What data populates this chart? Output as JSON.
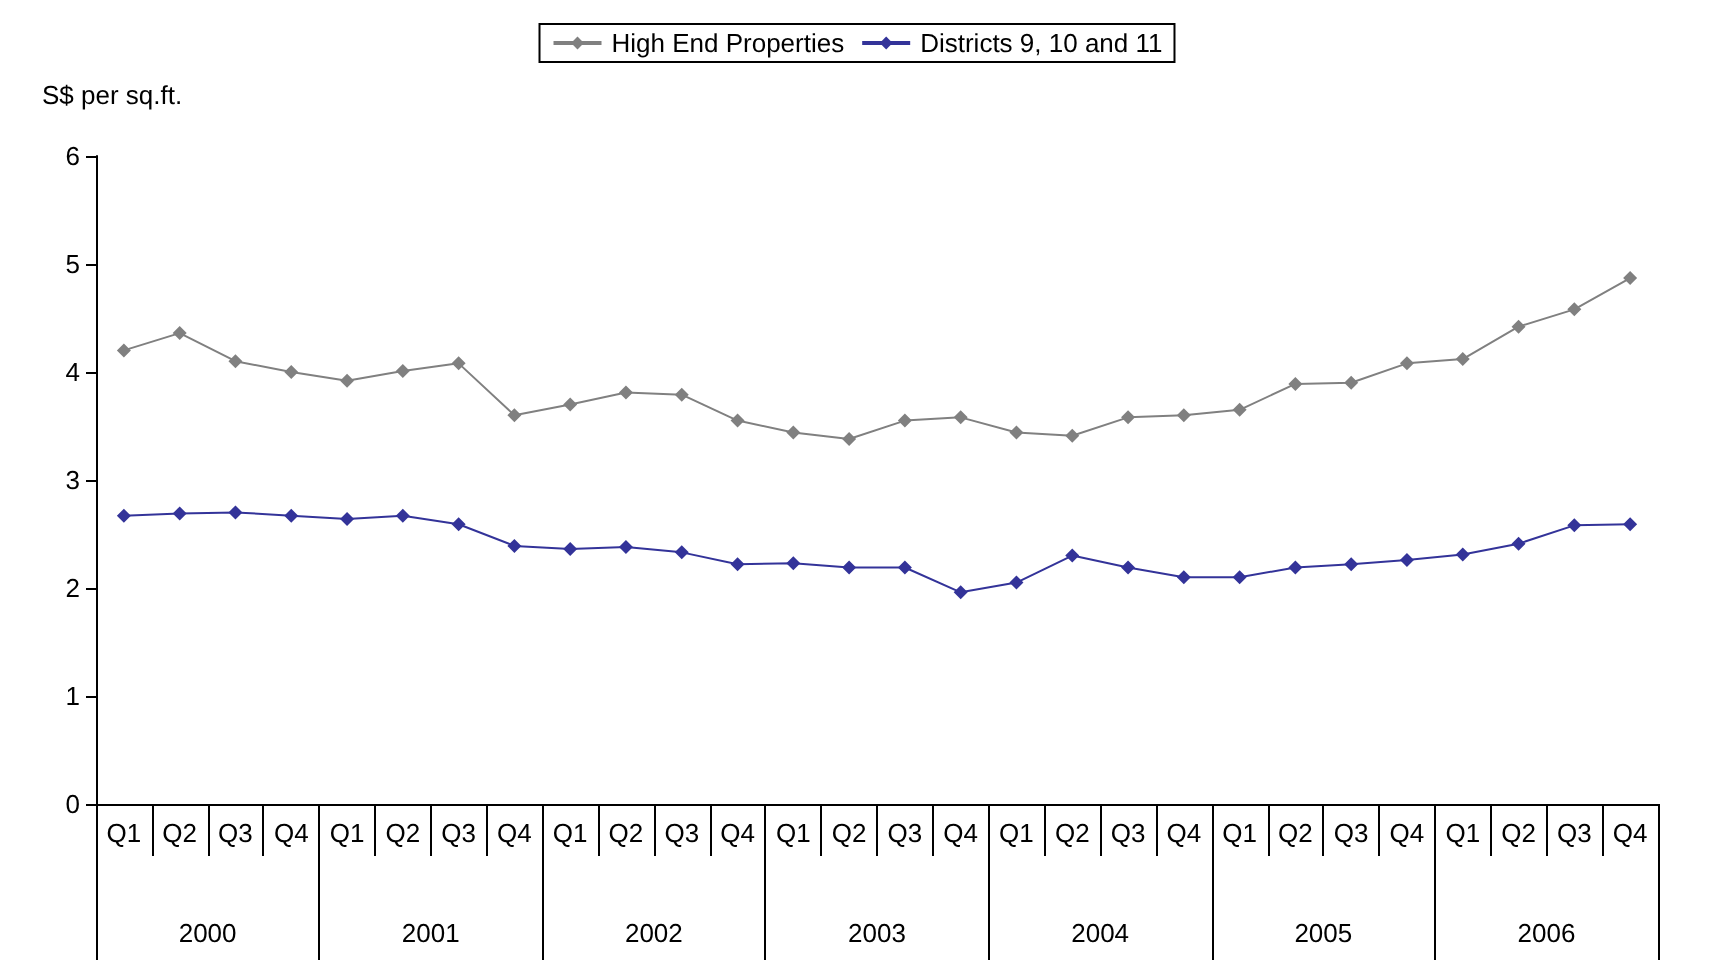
{
  "chart_data": {
    "type": "line",
    "ylabel": "S$ per sq.ft.",
    "categories": [
      "Q1",
      "Q2",
      "Q3",
      "Q4",
      "Q1",
      "Q2",
      "Q3",
      "Q4",
      "Q1",
      "Q2",
      "Q3",
      "Q4",
      "Q1",
      "Q2",
      "Q3",
      "Q4",
      "Q1",
      "Q2",
      "Q3",
      "Q4",
      "Q1",
      "Q2",
      "Q3",
      "Q4",
      "Q1",
      "Q2",
      "Q3",
      "Q4"
    ],
    "annotations": [
      "2000",
      "2001",
      "2002",
      "2003",
      "2004",
      "2005",
      "2006"
    ],
    "series": [
      {
        "name": "High End Properties",
        "color": "#808080",
        "values": [
          4.2,
          4.36,
          4.1,
          4.0,
          3.92,
          4.01,
          4.08,
          3.6,
          3.7,
          3.81,
          3.79,
          3.55,
          3.44,
          3.38,
          3.55,
          3.58,
          3.44,
          3.41,
          3.58,
          3.6,
          3.65,
          3.89,
          3.9,
          4.08,
          4.12,
          4.42,
          4.58,
          4.87
        ]
      },
      {
        "name": "Districts 9, 10 and 11",
        "color": "#333399",
        "values": [
          2.67,
          2.69,
          2.7,
          2.67,
          2.64,
          2.67,
          2.59,
          2.39,
          2.36,
          2.38,
          2.33,
          2.22,
          2.23,
          2.19,
          2.19,
          1.96,
          2.05,
          2.3,
          2.19,
          2.1,
          2.1,
          2.19,
          2.22,
          2.26,
          2.31,
          2.41,
          2.58,
          2.59
        ]
      }
    ],
    "ylim": [
      0,
      6
    ],
    "yticks": [
      0,
      1,
      2,
      3,
      4,
      5,
      6
    ],
    "grid": false,
    "legend": "top",
    "marker": "diamond",
    "line_style": "solid"
  }
}
